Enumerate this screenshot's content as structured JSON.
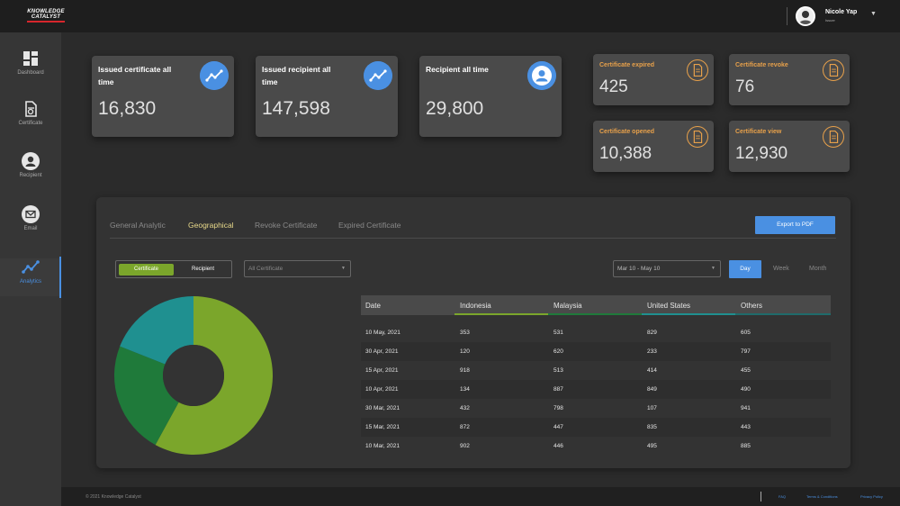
{
  "brand": {
    "line1": "KNOWLEDGE",
    "line2": "CATALYST"
  },
  "user": {
    "name": "Nicole Yap",
    "role": "Issuer",
    "caret": "▼"
  },
  "sidebar": {
    "items": [
      {
        "label": "Dashboard",
        "icon": "dashboard-icon"
      },
      {
        "label": "Certificate",
        "icon": "certificate-icon"
      },
      {
        "label": "Recipient",
        "icon": "user-icon"
      },
      {
        "label": "Email",
        "icon": "email-icon"
      },
      {
        "label": "Analytics",
        "icon": "analytics-icon",
        "active": true
      }
    ]
  },
  "stats": {
    "issued_certificate": {
      "title_line1": "Issued certificate all",
      "title_line2": "time",
      "value": "16,830",
      "icon": "trend-icon"
    },
    "issued_recipient": {
      "title_line1": "Issued recipient all",
      "title_line2": "time",
      "value": "147,598",
      "icon": "trend-icon"
    },
    "recipient_all": {
      "title_line1": "Recipient all time",
      "value": "29,800",
      "icon": "user-icon"
    },
    "cert_expired": {
      "title": "Certificate expired",
      "value": "425",
      "icon": "document-icon"
    },
    "cert_revoke": {
      "title": "Certificate revoke",
      "value": "76",
      "icon": "document-icon"
    },
    "cert_opened": {
      "title": "Certificate opened",
      "value": "10,388",
      "icon": "document-icon"
    },
    "cert_view": {
      "title": "Certificate view",
      "value": "12,930",
      "icon": "document-icon"
    }
  },
  "tabs": [
    "General Analytic",
    "Geographical",
    "Revoke Certificate",
    "Expired Certificate"
  ],
  "active_tab": "Geographical",
  "export_label": "Export to PDF",
  "toggle": {
    "left": "Certificate",
    "right": "Recipient"
  },
  "filter_select": {
    "value": "All Certificate",
    "caret": "▼"
  },
  "date_select": {
    "value": "Mar 10 - May 10",
    "caret": "▼"
  },
  "range": {
    "day": "Day",
    "week": "Week",
    "month": "Month"
  },
  "table": {
    "headers": [
      "Date",
      "Indonesia",
      "Malaysia",
      "United States",
      "Others"
    ],
    "rows": [
      [
        "10 May, 2021",
        "353",
        "531",
        "829",
        "605"
      ],
      [
        "30 Apr, 2021",
        "120",
        "620",
        "233",
        "797"
      ],
      [
        "15 Apr, 2021",
        "918",
        "513",
        "414",
        "455"
      ],
      [
        "10 Apr, 2021",
        "134",
        "887",
        "849",
        "490"
      ],
      [
        "30 Mar, 2021",
        "432",
        "798",
        "107",
        "941"
      ],
      [
        "15 Mar, 2021",
        "872",
        "447",
        "835",
        "443"
      ],
      [
        "10 Mar, 2021",
        "902",
        "446",
        "495",
        "885"
      ]
    ]
  },
  "donut": {
    "segments": [
      {
        "color": "#7ba62b",
        "value": 0.58
      },
      {
        "color": "#1f7a3a",
        "value": 0.23
      },
      {
        "color": "#1f9090",
        "value": 0.19
      }
    ]
  },
  "footer": {
    "copyright": "© 2021 Knowledge Catalyst",
    "links": [
      "FAQ",
      "Terms & Conditions",
      "Privacy Policy"
    ]
  },
  "colors": {
    "accent": "#4a90e2",
    "orange": "#e8a14a",
    "active_tab": "#e8d98a"
  }
}
